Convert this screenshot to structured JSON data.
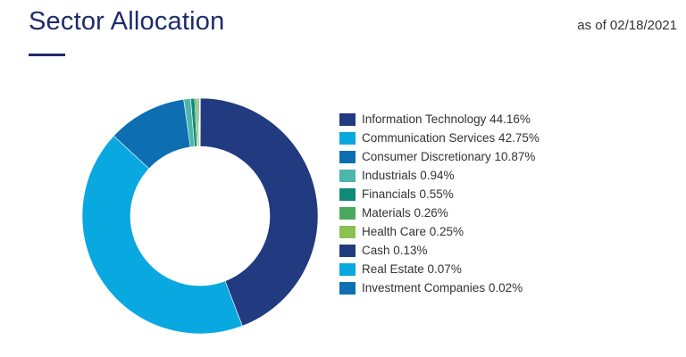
{
  "header": {
    "title": "Sector Allocation",
    "as_of": "as of 02/18/2021"
  },
  "chart_data": {
    "type": "pie",
    "donut": true,
    "legend_position": "right",
    "categories": [
      "Information Technology",
      "Communication Services",
      "Consumer Discretionary",
      "Industrials",
      "Financials",
      "Materials",
      "Health Care",
      "Cash",
      "Real Estate",
      "Investment Companies"
    ],
    "values": [
      44.16,
      42.75,
      10.87,
      0.94,
      0.55,
      0.26,
      0.25,
      0.13,
      0.07,
      0.02
    ],
    "colors": [
      "#213a80",
      "#0aa8e0",
      "#0d6eb2",
      "#4db6ac",
      "#0f8a76",
      "#4aa95c",
      "#8cc152",
      "#213a80",
      "#0aa8e0",
      "#0d6eb2"
    ],
    "legend_labels": [
      "Information Technology 44.16%",
      "Communication Services 42.75%",
      "Consumer Discretionary 10.87%",
      "Industrials 0.94%",
      "Financials 0.55%",
      "Materials 0.26%",
      "Health Care 0.25%",
      "Cash 0.13%",
      "Real Estate 0.07%",
      "Investment Companies 0.02%"
    ]
  }
}
